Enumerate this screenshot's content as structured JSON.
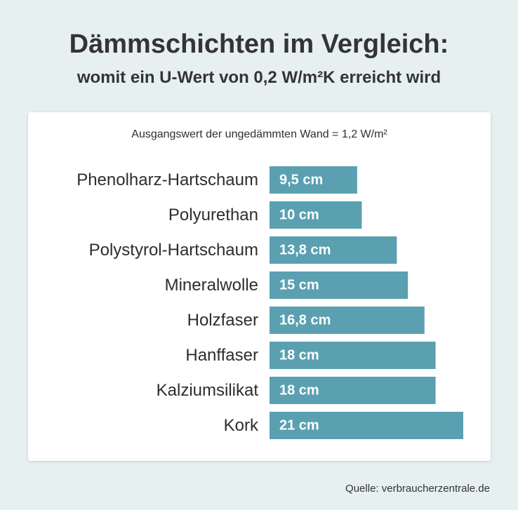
{
  "header": {
    "title": "Dämmschichten im Vergleich:",
    "subtitle": "womit ein U-Wert von 0,2 W/m²K erreicht wird"
  },
  "card": {
    "baseline_note": "Ausgangswert der ungedämmten Wand = 1,2 W/m²"
  },
  "footer": {
    "source": "Quelle: verbraucherzentrale.de"
  },
  "colors": {
    "bar": "#5aa0b0",
    "background": "#e6f0f1",
    "card": "#ffffff"
  },
  "chart_data": {
    "type": "bar",
    "orientation": "horizontal",
    "categories": [
      "Phenolharz-Hartschaum",
      "Polyurethan",
      "Polystyrol-Hartschaum",
      "Mineralwolle",
      "Holzfaser",
      "Hanffaser",
      "Kalziumsilikat",
      "Kork"
    ],
    "values": [
      9.5,
      10,
      13.8,
      15,
      16.8,
      18,
      18,
      21
    ],
    "data_labels": [
      "9,5 cm",
      "10 cm",
      "13,8 cm",
      "15 cm",
      "16,8 cm",
      "18 cm",
      "18 cm",
      "21 cm"
    ],
    "unit": "cm",
    "xlim": [
      0,
      21
    ],
    "grid": false,
    "legend": "none"
  }
}
